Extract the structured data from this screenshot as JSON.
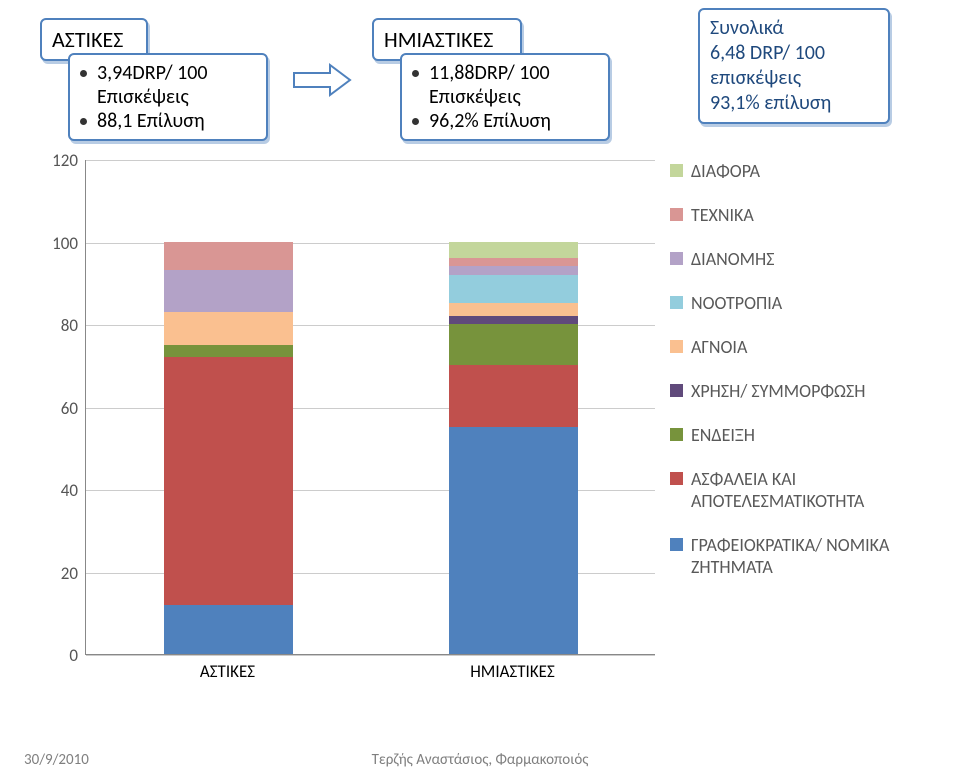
{
  "colors": {
    "blue_border": "#4f81bd",
    "shadow": "#b8cce4"
  },
  "box1": {
    "header": "ΑΣΤΙΚΕΣ",
    "line1": "3,94DRP/ 100 Επισκέψεις",
    "line2": "88,1 Επίλυση"
  },
  "box2": {
    "header": "ΗΜΙΑΣΤΙΚΕΣ",
    "line1": "11,88DRP/ 100 Επισκέψεις",
    "line2": "96,2% Επίλυση"
  },
  "box3": {
    "l1": "Συνολικά",
    "l2": "6,48 DRP/ 100 επισκέψεις",
    "l3": "93,1% επίλυση"
  },
  "chart": {
    "type": "stacked-bar",
    "y_ticks": [
      0,
      20,
      40,
      60,
      80,
      100,
      120
    ],
    "ylim": [
      0,
      120
    ],
    "categories": [
      "ΑΣΤΙΚΕΣ",
      "ΗΜΙΑΣΤΙΚΕΣ"
    ],
    "series": [
      {
        "label": "ΔΙΑΦΟΡΑ",
        "color": "#c3d69b",
        "values": [
          0,
          4
        ]
      },
      {
        "label": "ΤΕΧΝΙΚΑ",
        "color": "#d99694",
        "values": [
          7,
          2
        ]
      },
      {
        "label": "ΔΙΑΝΟΜΗΣ",
        "color": "#b3a2c7",
        "values": [
          10,
          2
        ]
      },
      {
        "label": "ΝΟΟΤΡΟΠΙΑ",
        "color": "#93cddd",
        "values": [
          0,
          7
        ]
      },
      {
        "label": "ΑΓΝΟΙΑ",
        "color": "#fac090",
        "values": [
          8,
          3
        ]
      },
      {
        "label": "ΧΡΗΣΗ/ ΣΥΜΜΟΡΦΩΣΗ",
        "color": "#604a7b",
        "values": [
          0,
          2
        ]
      },
      {
        "label": "ΕΝΔΕΙΞΗ",
        "color": "#77933c",
        "values": [
          3,
          10
        ]
      },
      {
        "label": "ΑΣΦΑΛΕΙΑ ΚΑΙ ΑΠΟΤΕΛΕΣΜΑΤΙΚΟΤΗΤΑ",
        "color": "#c0504d",
        "values": [
          60,
          15
        ]
      },
      {
        "label": "ΓΡΑΦΕΙΟΚΡΑΤΙΚΑ/ ΝΟΜΙΚΑ ΖΗΤΗΜΑΤΑ",
        "color": "#4f81bd",
        "values": [
          12,
          55
        ]
      }
    ],
    "background_color": "#ffffff",
    "grid_color": "#cccccc",
    "axis_color": "#888888",
    "bar_width_ratio": 0.45,
    "tick_fontsize": 17,
    "legend_fontsize": 18,
    "legend_text_color": "#595959"
  },
  "footer": {
    "date": "30/9/2010",
    "author": "Τερζής Αναστάσιος, Φαρμακοποιός"
  }
}
